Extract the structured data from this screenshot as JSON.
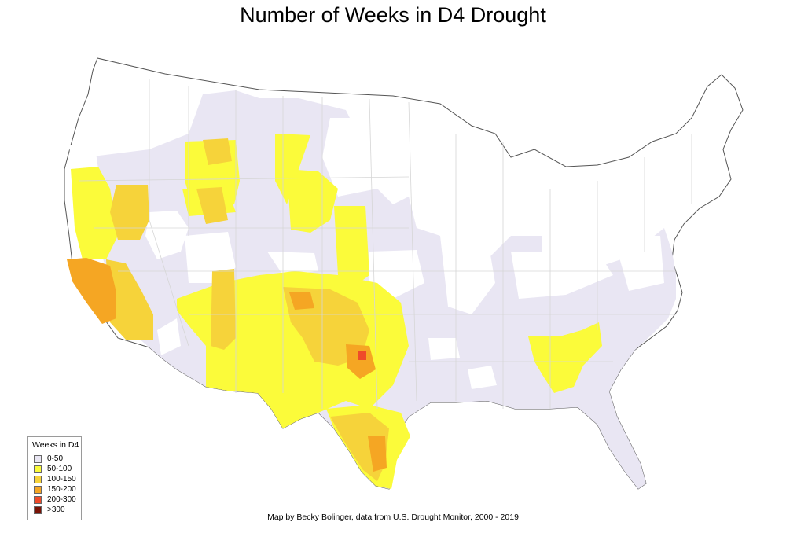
{
  "title": "Number of Weeks in D4 Drought",
  "legend": {
    "title": "Weeks in D4",
    "items": [
      {
        "label": "0-50",
        "color": "#e9e6f3"
      },
      {
        "label": "50-100",
        "color": "#fbfb3a"
      },
      {
        "label": "100-150",
        "color": "#f6d33a"
      },
      {
        "label": "150-200",
        "color": "#f5a623"
      },
      {
        "label": "200-300",
        "color": "#ef4a2a"
      },
      {
        "label": ">300",
        "color": "#7a1306"
      }
    ]
  },
  "credit": "Map by Becky Bolinger, data from U.S. Drought Monitor, 2000 - 2019"
}
